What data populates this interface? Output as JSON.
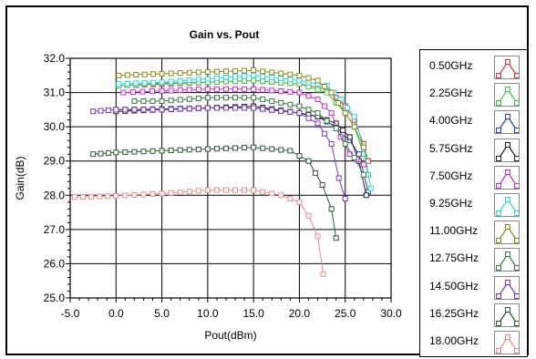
{
  "chart_data": {
    "type": "line",
    "title": "Gain vs. Pout",
    "xlabel": "Pout(dBm)",
    "ylabel": "Gain(dB)",
    "xlim": [
      -5,
      30
    ],
    "ylim": [
      25,
      32
    ],
    "x_ticks": [
      "-5.0",
      "0.0",
      "5.0",
      "10.0",
      "15.0",
      "20.0",
      "25.0",
      "30.0"
    ],
    "y_ticks": [
      "25.0",
      "26.0",
      "27.0",
      "28.0",
      "29.0",
      "30.0",
      "31.0",
      "32.0"
    ],
    "grid": true,
    "legend_position": "right",
    "series": [
      {
        "name": "0.50GHz",
        "color": "#e8303a",
        "points": [
          [
            0.3,
            31.2
          ],
          [
            5,
            31.25
          ],
          [
            10,
            31.3
          ],
          [
            15,
            31.35
          ],
          [
            20,
            31.25
          ],
          [
            23,
            31.1
          ],
          [
            25,
            30.6
          ],
          [
            26,
            30.2
          ],
          [
            27,
            29.5
          ],
          [
            27.5,
            29.0
          ]
        ]
      },
      {
        "name": "2.25GHz",
        "color": "#3ccc48",
        "points": [
          [
            0.3,
            31.2
          ],
          [
            5,
            31.28
          ],
          [
            10,
            31.3
          ],
          [
            15,
            31.35
          ],
          [
            20,
            31.25
          ],
          [
            23,
            31.0
          ],
          [
            25,
            30.4
          ],
          [
            26,
            30.0
          ],
          [
            27,
            29.2
          ],
          [
            27.5,
            28.6
          ]
        ]
      },
      {
        "name": "4.00GHz",
        "color": "#2a3ad0",
        "points": [
          [
            0,
            30.5
          ],
          [
            5,
            30.52
          ],
          [
            10,
            30.55
          ],
          [
            15,
            30.55
          ],
          [
            20,
            30.4
          ],
          [
            22,
            30.3
          ],
          [
            24,
            30.0
          ],
          [
            25.5,
            29.6
          ],
          [
            26.5,
            29.2
          ],
          [
            27.5,
            28.1
          ]
        ]
      },
      {
        "name": "5.75GHz",
        "color": "#202020",
        "points": [
          [
            0,
            30.45
          ],
          [
            5,
            30.5
          ],
          [
            10,
            30.55
          ],
          [
            15,
            30.6
          ],
          [
            20,
            30.4
          ],
          [
            22,
            30.3
          ],
          [
            24,
            30.1
          ],
          [
            25.5,
            29.7
          ],
          [
            26.5,
            29.0
          ],
          [
            27.3,
            28.0
          ]
        ]
      },
      {
        "name": "7.50GHz",
        "color": "#cc2ad8",
        "points": [
          [
            0.8,
            31.0
          ],
          [
            5,
            31.05
          ],
          [
            10,
            31.1
          ],
          [
            15,
            31.1
          ],
          [
            20,
            31.0
          ],
          [
            22,
            30.8
          ],
          [
            23.5,
            30.4
          ],
          [
            24.5,
            29.7
          ],
          [
            25.5,
            29.2
          ],
          [
            27,
            28.9
          ]
        ]
      },
      {
        "name": "9.25GHz",
        "color": "#22d8e8",
        "points": [
          [
            0.3,
            31.25
          ],
          [
            5,
            31.3
          ],
          [
            10,
            31.4
          ],
          [
            15,
            31.5
          ],
          [
            20,
            31.35
          ],
          [
            23,
            31.2
          ],
          [
            24.5,
            30.8
          ],
          [
            26,
            30.3
          ],
          [
            27,
            29.4
          ],
          [
            27.8,
            28.2
          ]
        ]
      },
      {
        "name": "11.00GHz",
        "color": "#8a8a18",
        "points": [
          [
            0.3,
            31.5
          ],
          [
            5,
            31.55
          ],
          [
            10,
            31.6
          ],
          [
            15,
            31.65
          ],
          [
            20,
            31.5
          ],
          [
            22,
            31.35
          ],
          [
            23.5,
            31.0
          ],
          [
            25,
            30.4
          ],
          [
            26,
            30.0
          ],
          [
            27,
            29.4
          ]
        ]
      },
      {
        "name": "12.75GHz",
        "color": "#3c7c46",
        "points": [
          [
            2,
            30.75
          ],
          [
            5,
            30.75
          ],
          [
            10,
            30.85
          ],
          [
            15,
            30.85
          ],
          [
            20,
            30.6
          ],
          [
            22,
            30.4
          ],
          [
            24,
            29.95
          ],
          [
            25,
            29.5
          ],
          [
            26,
            29.1
          ],
          [
            27,
            28.6
          ]
        ]
      },
      {
        "name": "14.50GHz",
        "color": "#7a38c8",
        "points": [
          [
            -2.5,
            30.45
          ],
          [
            0,
            30.5
          ],
          [
            5,
            30.5
          ],
          [
            10,
            30.55
          ],
          [
            15,
            30.55
          ],
          [
            20,
            30.4
          ],
          [
            22,
            30.1
          ],
          [
            23.5,
            29.5
          ],
          [
            24.3,
            28.5
          ],
          [
            25,
            27.9
          ]
        ]
      },
      {
        "name": "16.25GHz",
        "color": "#2a5a30",
        "points": [
          [
            -2.5,
            29.2
          ],
          [
            0,
            29.25
          ],
          [
            5,
            29.3
          ],
          [
            10,
            29.35
          ],
          [
            15,
            29.4
          ],
          [
            19,
            29.3
          ],
          [
            21,
            29.0
          ],
          [
            22.5,
            28.3
          ],
          [
            23.5,
            27.6
          ],
          [
            24,
            26.75
          ]
        ]
      },
      {
        "name": "18.00GHz",
        "color": "#f28a8a",
        "points": [
          [
            -4.5,
            27.95
          ],
          [
            0,
            27.98
          ],
          [
            5,
            28.05
          ],
          [
            10,
            28.15
          ],
          [
            15,
            28.15
          ],
          [
            18,
            28.0
          ],
          [
            20,
            27.8
          ],
          [
            21,
            27.4
          ],
          [
            22,
            26.8
          ],
          [
            22.6,
            25.7
          ]
        ]
      }
    ]
  }
}
